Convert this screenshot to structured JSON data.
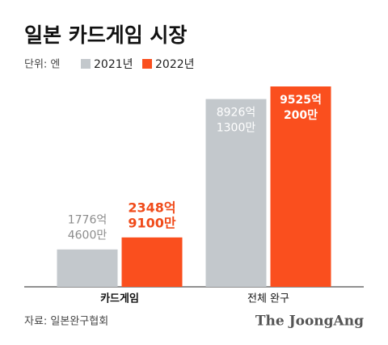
{
  "chart_data": {
    "type": "bar",
    "title": "일본 카드게임 시장",
    "unit_label": "단위: 엔",
    "categories": [
      "카드게임",
      "전체 완구"
    ],
    "series": [
      {
        "name": "2021년",
        "color": "#c3c8cc",
        "label_color": "#8c8c8c",
        "values": [
          177646000000,
          892613000000
        ],
        "value_labels": [
          [
            "1776억",
            "4600만"
          ],
          [
            "8926억",
            "1300만"
          ]
        ]
      },
      {
        "name": "2022년",
        "color": "#fa4f1e",
        "label_color": "#f04b1a",
        "values": [
          234891000000,
          952502000000
        ],
        "value_labels": [
          [
            "2348억",
            "9100만"
          ],
          [
            "9525억",
            "200만"
          ]
        ]
      }
    ],
    "source": "자료: 일본완구협회",
    "logo": "The JoongAng"
  }
}
